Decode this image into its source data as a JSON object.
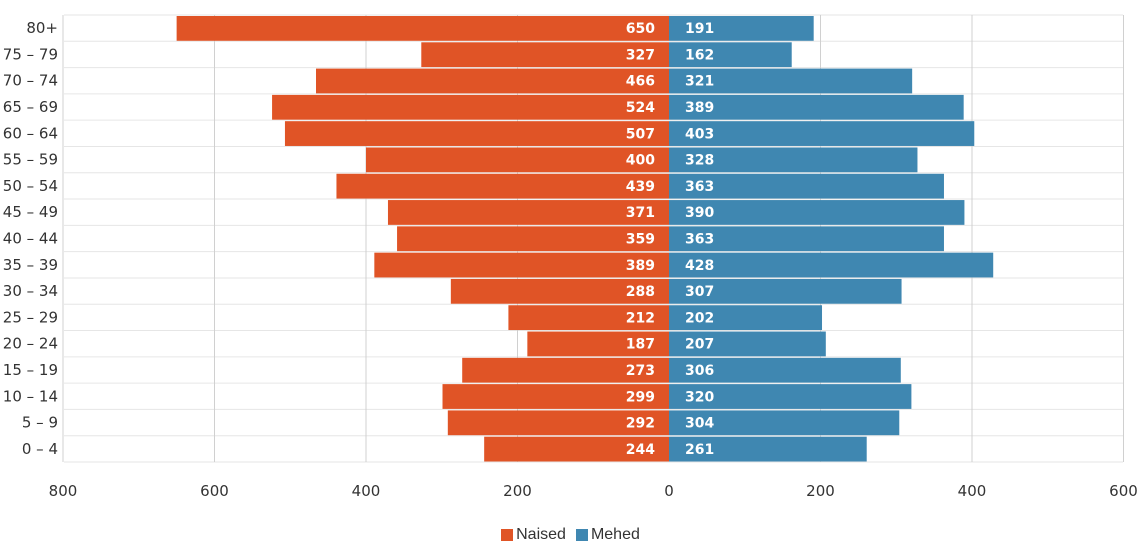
{
  "chart_data": {
    "type": "bar",
    "orientation": "horizontal-population-pyramid",
    "categories": [
      "80+",
      "75 – 79",
      "70 – 74",
      "65 – 69",
      "60 – 64",
      "55 – 59",
      "50 – 54",
      "45 – 49",
      "40 – 44",
      "35 – 39",
      "30 – 34",
      "25 – 29",
      "20 – 24",
      "15 – 19",
      "10 – 14",
      "5 – 9",
      "0 – 4"
    ],
    "series": [
      {
        "name": "Naised",
        "color": "#e05426",
        "side": "left",
        "values": [
          650,
          327,
          466,
          524,
          507,
          400,
          439,
          371,
          359,
          389,
          288,
          212,
          187,
          273,
          299,
          292,
          244
        ]
      },
      {
        "name": "Mehed",
        "color": "#3f87b1",
        "side": "right",
        "values": [
          191,
          162,
          321,
          389,
          403,
          328,
          363,
          390,
          363,
          428,
          307,
          202,
          207,
          306,
          320,
          304,
          261
        ]
      }
    ],
    "x_ticks": [
      "800",
      "600",
      "400",
      "200",
      "0",
      "200",
      "400",
      "600"
    ],
    "xlim": [
      -800,
      600
    ],
    "grid": true,
    "legend_position": "bottom-center",
    "title": "",
    "xlabel": "",
    "ylabel": ""
  }
}
